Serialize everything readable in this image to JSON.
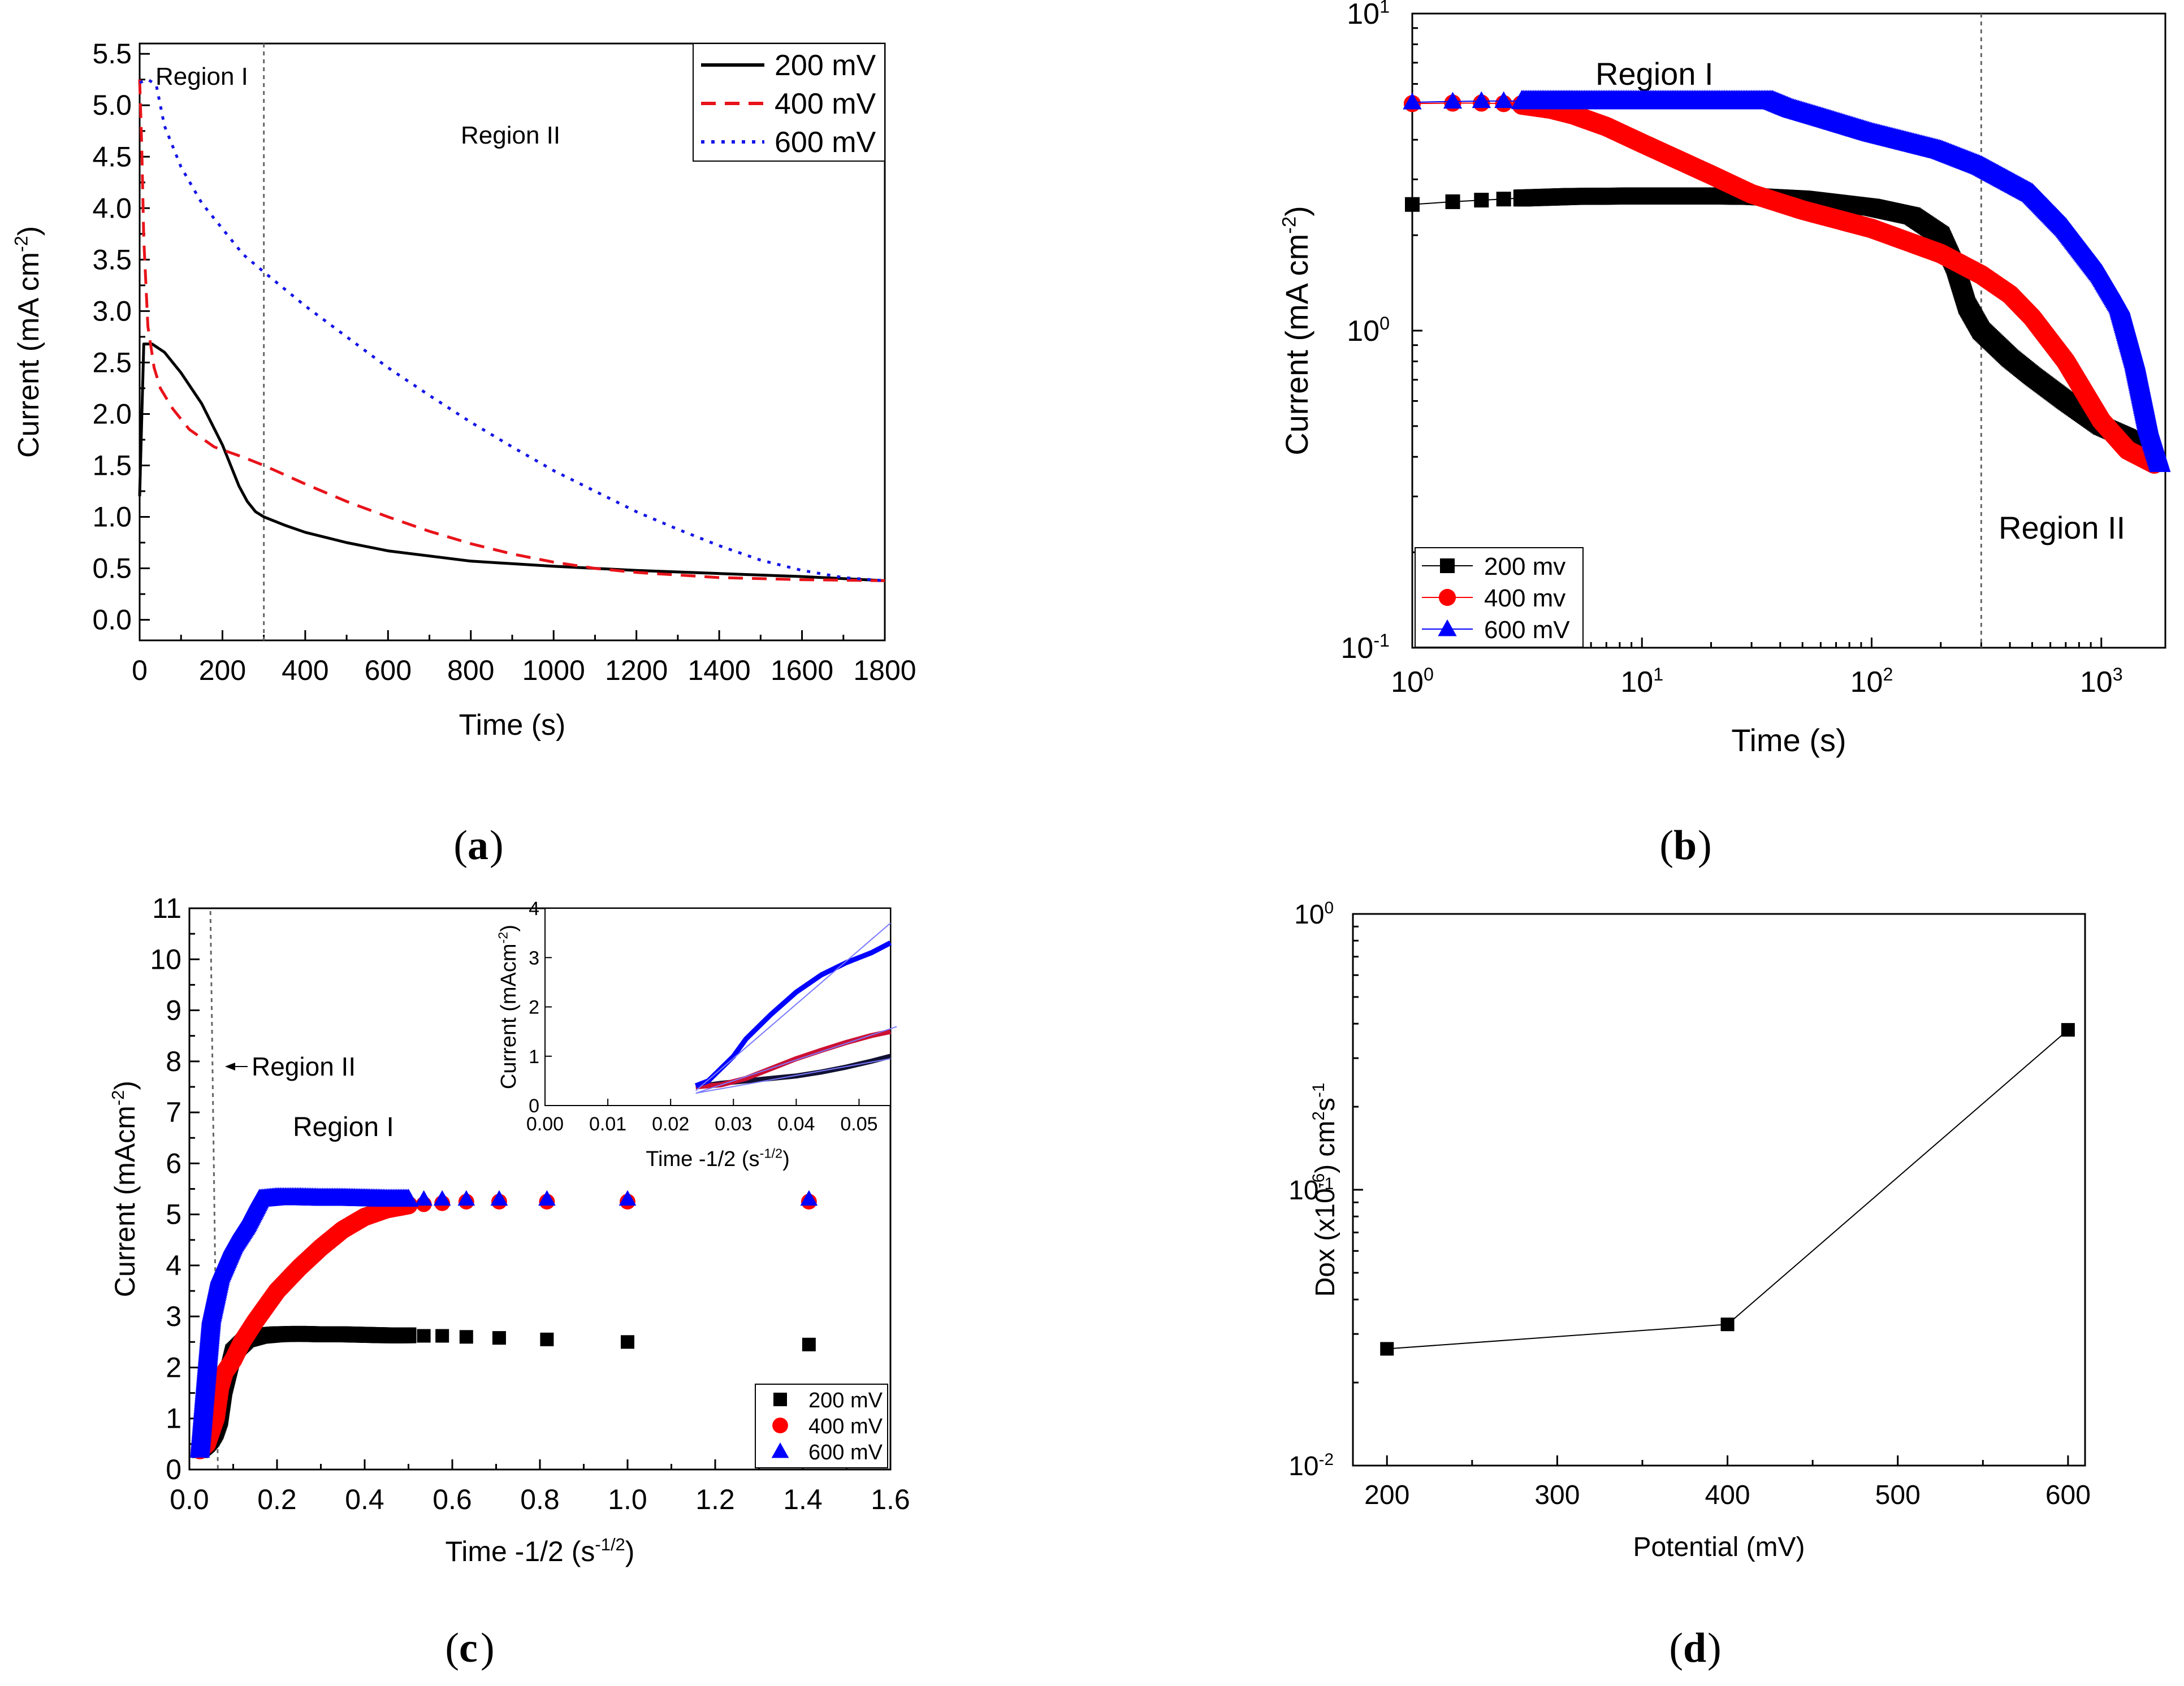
{
  "chart_data": [
    {
      "id": "a",
      "type": "line",
      "caption": "a",
      "xlabel": "Time (s)",
      "ylabel": "Current (mA cm",
      "ylabel_sup": "-2",
      "ylabel_end": ")",
      "xlim": [
        0,
        1800
      ],
      "ylim": [
        -0.2,
        5.6
      ],
      "xticks": [
        "0",
        "200",
        "400",
        "600",
        "800",
        "1000",
        "1200",
        "1400",
        "1600",
        "1800"
      ],
      "yticks": [
        "0.0",
        "0.5",
        "1.0",
        "1.5",
        "2.0",
        "2.5",
        "3.0",
        "3.5",
        "4.0",
        "4.5",
        "5.0",
        "5.5"
      ],
      "region_line_x": 300,
      "annotations": [
        "Region I",
        "Region II"
      ],
      "legend": [
        "200 mV",
        "400 mV",
        "600 mV"
      ],
      "series": [
        {
          "name": "200 mV",
          "color": "#000000",
          "style": "solid",
          "x": [
            0,
            10,
            30,
            60,
            100,
            150,
            200,
            240,
            260,
            280,
            300,
            350,
            400,
            500,
            600,
            800,
            1000,
            1200,
            1400,
            1600,
            1800
          ],
          "y": [
            1.2,
            2.68,
            2.68,
            2.6,
            2.4,
            2.1,
            1.7,
            1.3,
            1.15,
            1.05,
            1.0,
            0.92,
            0.85,
            0.75,
            0.67,
            0.57,
            0.52,
            0.48,
            0.45,
            0.42,
            0.38
          ]
        },
        {
          "name": "400 mV",
          "color": "#e8131a",
          "style": "dashed",
          "x": [
            0,
            5,
            10,
            20,
            35,
            50,
            80,
            120,
            180,
            250,
            300,
            400,
            500,
            600,
            700,
            800,
            900,
            1000,
            1100,
            1200,
            1400,
            1600,
            1800
          ],
          "y": [
            5.25,
            4.6,
            3.7,
            2.85,
            2.45,
            2.25,
            2.05,
            1.85,
            1.68,
            1.58,
            1.5,
            1.32,
            1.15,
            1.0,
            0.86,
            0.74,
            0.64,
            0.56,
            0.5,
            0.46,
            0.41,
            0.39,
            0.38
          ]
        },
        {
          "name": "600 mV",
          "color": "#1515e6",
          "style": "dotted",
          "x": [
            0,
            20,
            40,
            60,
            100,
            150,
            200,
            250,
            300,
            400,
            500,
            600,
            700,
            800,
            900,
            1000,
            1100,
            1200,
            1300,
            1400,
            1500,
            1600,
            1700,
            1800
          ],
          "y": [
            5.22,
            5.25,
            5.2,
            4.8,
            4.4,
            4.05,
            3.8,
            3.55,
            3.38,
            3.05,
            2.75,
            2.45,
            2.18,
            1.92,
            1.68,
            1.45,
            1.25,
            1.05,
            0.88,
            0.72,
            0.58,
            0.48,
            0.41,
            0.38
          ]
        }
      ]
    },
    {
      "id": "b",
      "type": "scatter",
      "caption": "b",
      "xscale": "log",
      "yscale": "log",
      "xlabel": "Time (s)",
      "ylabel": "Current (mA cm",
      "ylabel_sup": "-2",
      "ylabel_end": ")",
      "xlim": [
        1,
        1900
      ],
      "ylim": [
        0.1,
        10
      ],
      "xticks": [
        {
          "base": "10",
          "exp": "0"
        },
        {
          "base": "10",
          "exp": "1"
        },
        {
          "base": "10",
          "exp": "2"
        },
        {
          "base": "10",
          "exp": "3"
        }
      ],
      "yticks": [
        {
          "base": "10",
          "exp": "-1"
        },
        {
          "base": "10",
          "exp": "0"
        },
        {
          "base": "10",
          "exp": "1"
        }
      ],
      "region_line_x": 300,
      "annotations": [
        "Region I",
        "Region II"
      ],
      "legend": [
        "200 mv",
        "400 mv",
        "600 mV"
      ],
      "series": [
        {
          "name": "200 mv",
          "color": "#000000",
          "marker": "square",
          "x": [
            1,
            1.5,
            2,
            2.5,
            3,
            5,
            10,
            20,
            30,
            50,
            100,
            150,
            200,
            230,
            260,
            300,
            400,
            500,
            700,
            1000,
            1300,
            1700
          ],
          "y": [
            2.5,
            2.55,
            2.58,
            2.6,
            2.62,
            2.65,
            2.66,
            2.66,
            2.65,
            2.6,
            2.45,
            2.3,
            2.0,
            1.6,
            1.2,
            1.0,
            0.82,
            0.72,
            0.6,
            0.5,
            0.46,
            0.4
          ]
        },
        {
          "name": "400 mv",
          "color": "#ff0000",
          "marker": "circle",
          "x": [
            1,
            1.5,
            2,
            2.5,
            3,
            4,
            5,
            7,
            10,
            20,
            30,
            50,
            100,
            200,
            300,
            400,
            500,
            700,
            1000,
            1300,
            1700
          ],
          "y": [
            5.2,
            5.22,
            5.22,
            5.2,
            5.15,
            5.0,
            4.8,
            4.4,
            3.9,
            3.1,
            2.7,
            2.4,
            2.1,
            1.75,
            1.5,
            1.3,
            1.1,
            0.8,
            0.52,
            0.42,
            0.38
          ]
        },
        {
          "name": "600 mV",
          "color": "#0000ff",
          "marker": "triangle",
          "x": [
            1,
            1.5,
            2,
            2.5,
            3,
            4,
            5,
            10,
            20,
            30,
            37,
            45,
            60,
            100,
            200,
            300,
            500,
            700,
            1000,
            1200,
            1400,
            1600,
            1800
          ],
          "y": [
            5.25,
            5.28,
            5.3,
            5.3,
            5.3,
            5.3,
            5.3,
            5.3,
            5.3,
            5.3,
            5.3,
            5.0,
            4.7,
            4.2,
            3.7,
            3.3,
            2.7,
            2.1,
            1.5,
            1.2,
            0.8,
            0.5,
            0.38
          ]
        }
      ]
    },
    {
      "id": "c",
      "type": "scatter",
      "caption": "c",
      "xlabel": "Time -1/2 (s",
      "xlabel_sup": "-1/2",
      "xlabel_end": ")",
      "ylabel": "Current (mAcm",
      "ylabel_sup": "-2",
      "ylabel_end": ")",
      "xlim": [
        0,
        1.6
      ],
      "ylim": [
        0,
        11
      ],
      "xticks": [
        "0.0",
        "0.2",
        "0.4",
        "0.6",
        "0.8",
        "1.0",
        "1.2",
        "1.4",
        "1.6"
      ],
      "yticks": [
        "0",
        "1",
        "2",
        "3",
        "4",
        "5",
        "6",
        "7",
        "8",
        "9",
        "10",
        "11"
      ],
      "region_line_x": 0.058,
      "annotations": [
        "Region II",
        "Region I"
      ],
      "legend": [
        "200 mV",
        "400 mV",
        "600 mV"
      ],
      "series": [
        {
          "name": "200 mV",
          "color": "#000000",
          "marker": "square",
          "x": [
            0.024,
            0.04,
            0.05,
            0.06,
            0.07,
            0.08,
            0.1,
            0.13,
            0.16,
            0.2,
            0.25,
            0.3,
            0.35,
            0.4,
            0.45,
            0.5,
            0.535,
            0.577,
            0.632,
            0.707,
            0.816,
            1.0,
            1.414
          ],
          "y": [
            0.38,
            0.5,
            0.6,
            0.75,
            1.0,
            1.6,
            2.3,
            2.55,
            2.62,
            2.65,
            2.66,
            2.65,
            2.65,
            2.64,
            2.63,
            2.63,
            2.62,
            2.62,
            2.6,
            2.58,
            2.55,
            2.5,
            2.45
          ]
        },
        {
          "name": "400 mV",
          "color": "#ff0000",
          "marker": "circle",
          "x": [
            0.024,
            0.04,
            0.06,
            0.07,
            0.08,
            0.1,
            0.12,
            0.15,
            0.2,
            0.25,
            0.3,
            0.35,
            0.4,
            0.45,
            0.5,
            0.535,
            0.577,
            0.632,
            0.707,
            0.816,
            1.0,
            1.414
          ],
          "y": [
            0.38,
            0.5,
            1.0,
            1.6,
            1.9,
            2.15,
            2.5,
            2.9,
            3.5,
            3.95,
            4.35,
            4.7,
            4.95,
            5.1,
            5.18,
            5.2,
            5.22,
            5.25,
            5.25,
            5.25,
            5.25,
            5.25
          ]
        },
        {
          "name": "600 mV",
          "color": "#0000ff",
          "marker": "triangle",
          "x": [
            0.024,
            0.035,
            0.05,
            0.07,
            0.1,
            0.13,
            0.16,
            0.2,
            0.25,
            0.3,
            0.35,
            0.4,
            0.45,
            0.5,
            0.535,
            0.577,
            0.632,
            0.707,
            0.816,
            1.0,
            1.414
          ],
          "y": [
            0.38,
            1.5,
            3.0,
            3.8,
            4.4,
            4.8,
            5.3,
            5.33,
            5.33,
            5.32,
            5.32,
            5.31,
            5.3,
            5.3,
            5.3,
            5.3,
            5.3,
            5.3,
            5.3,
            5.3,
            5.3
          ]
        }
      ],
      "inset": {
        "xlabel": "Time -1/2 (s",
        "xlabel_sup": "-1/2",
        "xlabel_end": ")",
        "ylabel": "Current (mAcm",
        "ylabel_sup": "-2",
        "ylabel_end": ")",
        "xlim": [
          0,
          0.055
        ],
        "ylim": [
          0,
          4
        ],
        "xticks": [
          "0.00",
          "0.01",
          "0.02",
          "0.03",
          "0.04",
          "0.05"
        ],
        "yticks": [
          "0",
          "1",
          "2",
          "3",
          "4"
        ],
        "series": [
          {
            "name": "200 mV",
            "color": "#111133",
            "x": [
              0.024,
              0.028,
              0.032,
              0.036,
              0.04,
              0.044,
              0.048,
              0.052,
              0.055
            ],
            "y": [
              0.38,
              0.45,
              0.5,
              0.55,
              0.6,
              0.68,
              0.78,
              0.9,
              1.0
            ]
          },
          {
            "name": "400 mV",
            "color": "#cc1133",
            "x": [
              0.024,
              0.028,
              0.032,
              0.036,
              0.04,
              0.044,
              0.048,
              0.052,
              0.055
            ],
            "y": [
              0.38,
              0.42,
              0.55,
              0.75,
              0.95,
              1.12,
              1.28,
              1.42,
              1.5
            ]
          },
          {
            "name": "600 mV",
            "color": "#0000ff",
            "x": [
              0.024,
              0.026,
              0.028,
              0.03,
              0.032,
              0.036,
              0.04,
              0.044,
              0.048,
              0.052,
              0.055
            ],
            "y": [
              0.4,
              0.5,
              0.75,
              1.0,
              1.35,
              1.85,
              2.3,
              2.65,
              2.9,
              3.1,
              3.3
            ]
          }
        ],
        "fits": [
          {
            "color": "#7a7aff",
            "x": [
              0.024,
              0.055
            ],
            "y": [
              0.3,
              3.7
            ]
          },
          {
            "color": "#7a7aff",
            "x": [
              0.024,
              0.056
            ],
            "y": [
              0.25,
              1.6
            ]
          },
          {
            "color": "#7a7aff",
            "x": [
              0.024,
              0.055
            ],
            "y": [
              0.25,
              0.95
            ]
          }
        ]
      }
    },
    {
      "id": "d",
      "type": "line",
      "caption": "d",
      "yscale": "log",
      "xlabel": "Potential (mV)",
      "ylabel": "Dox (x10",
      "ylabel_sup": "-6",
      "ylabel_mid": ") cm",
      "ylabel_sup2": "2",
      "ylabel_mid2": "s",
      "ylabel_sup3": "-1",
      "xlim": [
        180,
        610
      ],
      "ylim": [
        0.01,
        1
      ],
      "xticks": [
        "200",
        "300",
        "400",
        "500",
        "600"
      ],
      "yticks": [
        {
          "base": "10",
          "exp": "-2"
        },
        {
          "base": "10",
          "exp": "-1"
        },
        {
          "base": "10",
          "exp": "0"
        }
      ],
      "x": [
        200,
        400,
        600
      ],
      "y": [
        0.0265,
        0.0325,
        0.38
      ]
    }
  ]
}
